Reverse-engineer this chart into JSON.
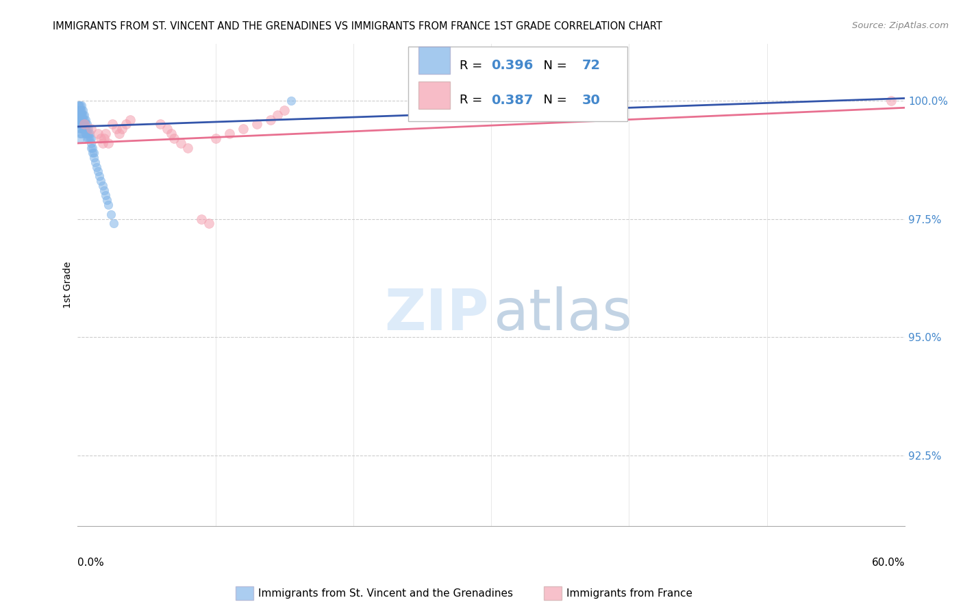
{
  "title": "IMMIGRANTS FROM ST. VINCENT AND THE GRENADINES VS IMMIGRANTS FROM FRANCE 1ST GRADE CORRELATION CHART",
  "source": "Source: ZipAtlas.com",
  "ylabel": "1st Grade",
  "y_ticks": [
    92.5,
    95.0,
    97.5,
    100.0
  ],
  "y_tick_labels": [
    "92.5%",
    "95.0%",
    "97.5%",
    "100.0%"
  ],
  "xlim": [
    0.0,
    0.6
  ],
  "ylim": [
    91.0,
    101.2
  ],
  "blue_color": "#7EB3E8",
  "pink_color": "#F4A0B0",
  "blue_line_color": "#3355AA",
  "pink_line_color": "#E87090",
  "blue_scatter_x": [
    0.001,
    0.001,
    0.001,
    0.001,
    0.001,
    0.002,
    0.002,
    0.002,
    0.002,
    0.002,
    0.002,
    0.002,
    0.002,
    0.003,
    0.003,
    0.003,
    0.003,
    0.003,
    0.003,
    0.003,
    0.004,
    0.004,
    0.004,
    0.004,
    0.004,
    0.005,
    0.005,
    0.005,
    0.005,
    0.006,
    0.006,
    0.006,
    0.006,
    0.007,
    0.007,
    0.007,
    0.008,
    0.008,
    0.008,
    0.009,
    0.009,
    0.01,
    0.01,
    0.01,
    0.011,
    0.011,
    0.012,
    0.012,
    0.013,
    0.014,
    0.015,
    0.016,
    0.017,
    0.018,
    0.019,
    0.02,
    0.021,
    0.022,
    0.024,
    0.026,
    0.001,
    0.001,
    0.001,
    0.002,
    0.002,
    0.003,
    0.003,
    0.004,
    0.005,
    0.006,
    0.007,
    0.155
  ],
  "blue_scatter_y": [
    99.9,
    99.8,
    99.7,
    99.6,
    99.5,
    99.9,
    99.8,
    99.7,
    99.6,
    99.5,
    99.4,
    99.3,
    99.2,
    99.9,
    99.8,
    99.7,
    99.6,
    99.5,
    99.4,
    99.3,
    99.8,
    99.7,
    99.6,
    99.5,
    99.4,
    99.7,
    99.6,
    99.5,
    99.4,
    99.6,
    99.5,
    99.4,
    99.3,
    99.5,
    99.4,
    99.3,
    99.4,
    99.3,
    99.2,
    99.3,
    99.2,
    99.2,
    99.1,
    99.0,
    99.0,
    98.9,
    98.9,
    98.8,
    98.7,
    98.6,
    98.5,
    98.4,
    98.3,
    98.2,
    98.1,
    98.0,
    97.9,
    97.8,
    97.6,
    97.4,
    99.9,
    99.8,
    99.7,
    99.8,
    99.7,
    99.7,
    99.6,
    99.5,
    99.4,
    99.3,
    99.2,
    100.0
  ],
  "pink_scatter_x": [
    0.005,
    0.01,
    0.015,
    0.017,
    0.018,
    0.019,
    0.02,
    0.022,
    0.025,
    0.028,
    0.03,
    0.032,
    0.035,
    0.038,
    0.06,
    0.065,
    0.068,
    0.07,
    0.075,
    0.08,
    0.09,
    0.095,
    0.1,
    0.11,
    0.12,
    0.13,
    0.14,
    0.145,
    0.15,
    0.59
  ],
  "pink_scatter_y": [
    99.5,
    99.4,
    99.3,
    99.2,
    99.1,
    99.2,
    99.3,
    99.1,
    99.5,
    99.4,
    99.3,
    99.4,
    99.5,
    99.6,
    99.5,
    99.4,
    99.3,
    99.2,
    99.1,
    99.0,
    97.5,
    97.4,
    99.2,
    99.3,
    99.4,
    99.5,
    99.6,
    99.7,
    99.8,
    100.0
  ],
  "blue_trend_x": [
    0.0,
    0.6
  ],
  "blue_trend_y": [
    99.45,
    100.05
  ],
  "pink_trend_x": [
    0.0,
    0.6
  ],
  "pink_trend_y": [
    99.1,
    99.85
  ],
  "legend_R1": "0.396",
  "legend_N1": "72",
  "legend_R2": "0.387",
  "legend_N2": "30",
  "bottom_label1": "Immigrants from St. Vincent and the Grenadines",
  "bottom_label2": "Immigrants from France",
  "watermark_zip": "ZIP",
  "watermark_atlas": "atlas"
}
